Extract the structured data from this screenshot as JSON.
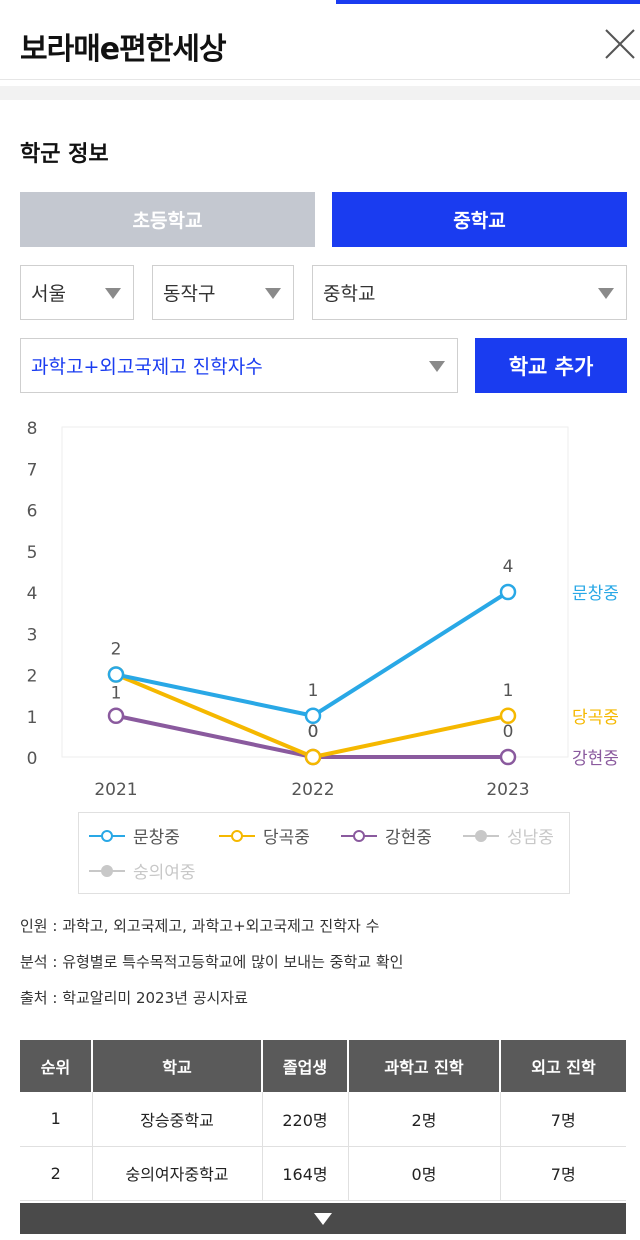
{
  "header": {
    "title": "보라매e편한세상"
  },
  "section": {
    "title": "학군 정보"
  },
  "tabs": [
    {
      "label": "초등학교",
      "active": false
    },
    {
      "label": "중학교",
      "active": true
    }
  ],
  "filters": {
    "city": "서울",
    "district": "동작구",
    "level": "중학교",
    "metric": "과학고+외고국제고 진학자수"
  },
  "add_button": "학교 추가",
  "colors": {
    "accent": "#1a3cf0",
    "series_1": "#29a8e6",
    "series_2": "#f5b800",
    "series_3": "#8a5a9e",
    "series_inactive": "#c8c8c8"
  },
  "chart_data": {
    "type": "line",
    "x": [
      "2021",
      "2022",
      "2023"
    ],
    "ylim": [
      0,
      8
    ],
    "yticks": [
      0,
      1,
      2,
      3,
      4,
      5,
      6,
      7,
      8
    ],
    "grid": false,
    "series": [
      {
        "name": "문창중",
        "values": [
          2,
          1,
          4
        ],
        "color": "#29a8e6"
      },
      {
        "name": "당곡중",
        "values": [
          2,
          0,
          1
        ],
        "color": "#f5b800"
      },
      {
        "name": "강현중",
        "values": [
          1,
          0,
          0
        ],
        "color": "#8a5a9e"
      }
    ],
    "point_labels": [
      {
        "x": "2021",
        "text": "2"
      },
      {
        "x": "2021",
        "text": "1"
      },
      {
        "x": "2022",
        "text": "1"
      },
      {
        "x": "2022",
        "text": "0"
      },
      {
        "x": "2022",
        "text": "0"
      },
      {
        "x": "2023",
        "text": "4"
      },
      {
        "x": "2023",
        "text": "1"
      },
      {
        "x": "2023",
        "text": "0"
      }
    ],
    "legend": [
      {
        "name": "문창중",
        "color": "#29a8e6",
        "active": true
      },
      {
        "name": "당곡중",
        "color": "#f5b800",
        "active": true
      },
      {
        "name": "강현중",
        "color": "#8a5a9e",
        "active": true
      },
      {
        "name": "성남중",
        "color": "#c8c8c8",
        "active": false
      },
      {
        "name": "숭의여중",
        "color": "#c8c8c8",
        "active": false
      }
    ]
  },
  "notes": [
    "인원 : 과학고, 외고국제고, 과학고+외고국제고 진학자 수",
    "분석 : 유형별로 특수목적고등학교에 많이 보내는 중학교 확인",
    "출처 : 학교알리미 2023년 공시자료"
  ],
  "table": {
    "headers": [
      "순위",
      "학교",
      "졸업생",
      "과학고 진학",
      "외고 진학"
    ],
    "rows": [
      [
        "1",
        "장승중학교",
        "220명",
        "2명",
        "7명"
      ],
      [
        "2",
        "숭의여자중학교",
        "164명",
        "0명",
        "7명"
      ]
    ]
  }
}
